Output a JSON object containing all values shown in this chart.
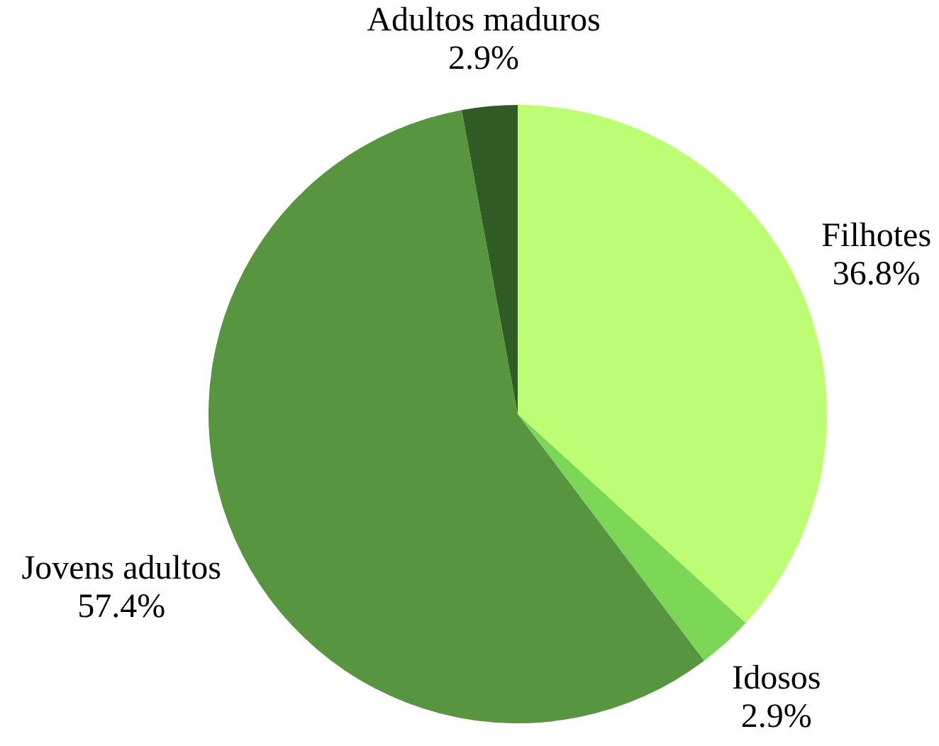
{
  "chart_data": {
    "type": "pie",
    "categories": [
      "Filhotes",
      "Idosos",
      "Jovens adultos",
      "Adultos maduros"
    ],
    "values": [
      36.8,
      2.9,
      57.4,
      2.9
    ],
    "value_labels": [
      "36.8%",
      "2.9%",
      "57.4%",
      "2.9%"
    ],
    "colors": [
      "#bdfd73",
      "#7dd757",
      "#58953f",
      "#305b24"
    ]
  }
}
